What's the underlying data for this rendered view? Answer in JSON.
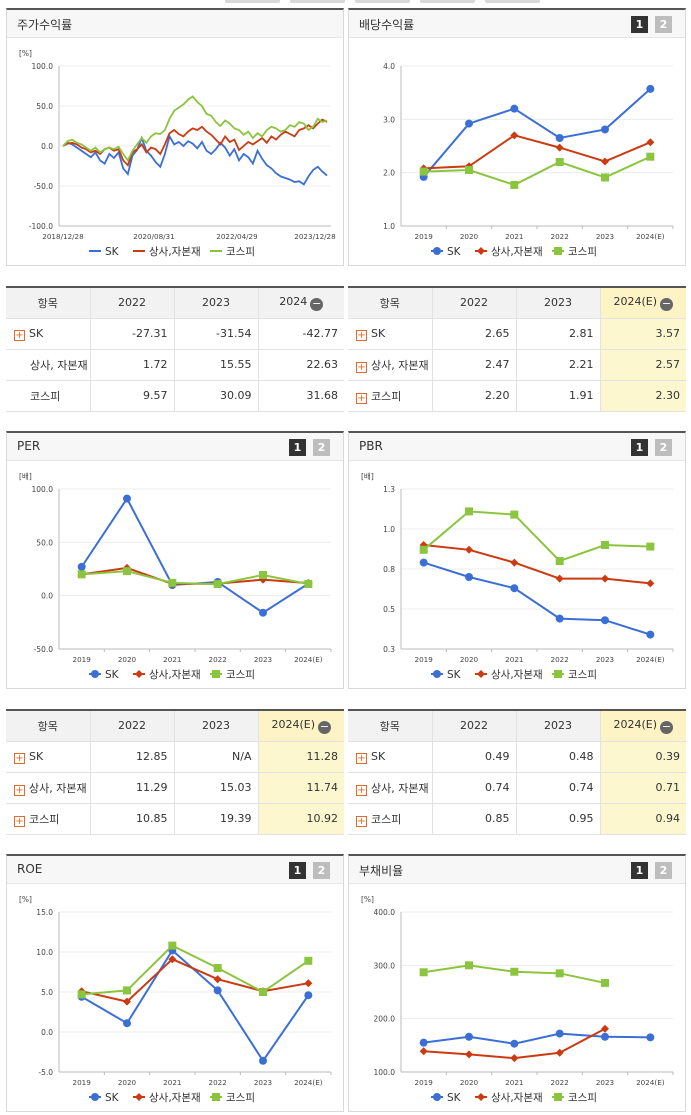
{
  "colors": {
    "sk": "#3b6fd6",
    "sector": "#cc3a12",
    "kospi": "#8bc53f"
  },
  "legend": {
    "sk": "SK",
    "sector": "상사,자본재",
    "kospi": "코스피"
  },
  "page_buttons": {
    "one": "1",
    "two": "2"
  },
  "panels": {
    "stock": {
      "title": "주가수익률"
    },
    "dividend": {
      "title": "배당수익률"
    },
    "per": {
      "title": "PER"
    },
    "pbr": {
      "title": "PBR"
    },
    "roe": {
      "title": "ROE"
    },
    "debt": {
      "title": "부채비율"
    }
  },
  "chart_data": [
    {
      "id": "stock",
      "type": "line",
      "unit": "[%]",
      "ylim": [
        -100,
        100
      ],
      "yticks": [
        "100.0",
        "50.0",
        "0.0",
        "-50.0",
        "-100.0"
      ],
      "xticks": [
        "2018/12/28",
        "2020/08/31",
        "2022/04/29",
        "2023/12/28"
      ],
      "series": [
        {
          "key": "sk",
          "values": [
            0,
            4,
            2,
            -2,
            -6,
            -10,
            -14,
            -8,
            -18,
            -22,
            -10,
            -15,
            -8,
            -28,
            -35,
            -12,
            -5,
            10,
            -6,
            -12,
            -20,
            -26,
            -10,
            12,
            2,
            5,
            0,
            6,
            3,
            -3,
            5,
            -6,
            -10,
            -4,
            4,
            -2,
            -12,
            -4,
            -18,
            -10,
            -14,
            -22,
            -6,
            -16,
            -24,
            -28,
            -34,
            -38,
            -40,
            -42,
            -45,
            -44,
            -48,
            -38,
            -30,
            -26,
            -32,
            -37
          ]
        },
        {
          "key": "sector",
          "values": [
            0,
            3,
            4,
            2,
            -2,
            -4,
            -8,
            -6,
            -10,
            -4,
            -2,
            -6,
            -4,
            -18,
            -24,
            -8,
            -4,
            2,
            -8,
            -2,
            -4,
            -10,
            2,
            16,
            20,
            15,
            12,
            18,
            22,
            20,
            24,
            18,
            14,
            8,
            2,
            12,
            5,
            8,
            -5,
            0,
            5,
            2,
            6,
            10,
            4,
            12,
            8,
            14,
            18,
            15,
            12,
            20,
            22,
            26,
            22,
            28,
            33,
            30
          ]
        },
        {
          "key": "kospi",
          "values": [
            0,
            6,
            8,
            4,
            2,
            -2,
            -6,
            -2,
            -8,
            -4,
            -2,
            -4,
            -1,
            -10,
            -18,
            -6,
            2,
            10,
            4,
            12,
            16,
            15,
            20,
            34,
            44,
            48,
            52,
            58,
            62,
            55,
            50,
            40,
            38,
            30,
            25,
            32,
            28,
            22,
            20,
            14,
            18,
            10,
            16,
            12,
            20,
            24,
            22,
            18,
            20,
            26,
            24,
            30,
            28,
            20,
            24,
            34,
            30,
            32
          ]
        }
      ]
    },
    {
      "id": "dividend",
      "type": "line",
      "unit": "",
      "ylim": [
        1.0,
        4.0
      ],
      "yticks": [
        "4.0",
        "3.0",
        "2.0",
        "1.0"
      ],
      "categories": [
        "2019",
        "2020",
        "2021",
        "2022",
        "2023",
        "2024(E)"
      ],
      "series": [
        {
          "key": "sk",
          "values": [
            1.92,
            2.92,
            3.2,
            2.65,
            2.81,
            3.57
          ]
        },
        {
          "key": "sector",
          "values": [
            2.08,
            2.12,
            2.7,
            2.47,
            2.21,
            2.57
          ]
        },
        {
          "key": "kospi",
          "values": [
            2.02,
            2.05,
            1.77,
            2.2,
            1.91,
            2.3
          ]
        }
      ]
    },
    {
      "id": "per",
      "type": "line",
      "unit": "[배]",
      "ylim": [
        -50,
        100
      ],
      "yticks": [
        "100.0",
        "50.0",
        "0.0",
        "-50.0"
      ],
      "categories": [
        "2019",
        "2020",
        "2021",
        "2022",
        "2023",
        "2024(E)"
      ],
      "series": [
        {
          "key": "sk",
          "values": [
            27,
            91,
            10,
            12.85,
            -16,
            11.28
          ]
        },
        {
          "key": "sector",
          "values": [
            20,
            26,
            11,
            11.29,
            15.03,
            11.74
          ]
        },
        {
          "key": "kospi",
          "values": [
            20,
            23,
            12,
            10.85,
            19.39,
            10.92
          ]
        }
      ]
    },
    {
      "id": "pbr",
      "type": "line",
      "unit": "[배]",
      "ylim": [
        0.3,
        1.3
      ],
      "yticks": [
        "1.3",
        "1.0",
        "0.8",
        "0.5",
        "0.3"
      ],
      "categories": [
        "2019",
        "2020",
        "2021",
        "2022",
        "2023",
        "2024(E)"
      ],
      "series": [
        {
          "key": "sk",
          "values": [
            0.84,
            0.75,
            0.68,
            0.49,
            0.48,
            0.39
          ]
        },
        {
          "key": "sector",
          "values": [
            0.95,
            0.92,
            0.84,
            0.74,
            0.74,
            0.71
          ]
        },
        {
          "key": "kospi",
          "values": [
            0.92,
            1.16,
            1.14,
            0.85,
            0.95,
            0.94
          ]
        }
      ]
    },
    {
      "id": "roe",
      "type": "line",
      "unit": "[%]",
      "ylim": [
        -5,
        15
      ],
      "yticks": [
        "15.0",
        "10.0",
        "5.0",
        "0.0",
        "-5.0"
      ],
      "categories": [
        "2019",
        "2020",
        "2021",
        "2022",
        "2023",
        "2024(E)"
      ],
      "series": [
        {
          "key": "sk",
          "values": [
            4.4,
            1.1,
            10.2,
            5.2,
            -3.6,
            4.6
          ]
        },
        {
          "key": "sector",
          "values": [
            5.1,
            3.8,
            9.1,
            6.6,
            5.1,
            6.1
          ]
        },
        {
          "key": "kospi",
          "values": [
            4.7,
            5.2,
            10.8,
            8.0,
            5.0,
            8.9
          ]
        }
      ]
    },
    {
      "id": "debt",
      "type": "line",
      "unit": "[%]",
      "ylim": [
        100,
        400
      ],
      "yticks": [
        "400.0",
        "300.0",
        "200.0",
        "100.0"
      ],
      "categories": [
        "2019",
        "2020",
        "2021",
        "2022",
        "2023",
        "2024(E)"
      ],
      "series": [
        {
          "key": "sk",
          "values": [
            155,
            166,
            153,
            172,
            166,
            165
          ]
        },
        {
          "key": "sector",
          "values": [
            139,
            133,
            126,
            136,
            181,
            null
          ]
        },
        {
          "key": "kospi",
          "values": [
            287,
            300,
            288,
            285,
            267,
            null
          ]
        }
      ]
    }
  ],
  "tables": {
    "stock": {
      "headers": [
        "항목",
        "2022",
        "2023",
        "2024"
      ],
      "rows": [
        {
          "label": "SK",
          "plus": true,
          "values": [
            "-27.31",
            "-31.54",
            "-42.77"
          ]
        },
        {
          "label": "상사, 자본재",
          "plus": false,
          "values": [
            "1.72",
            "15.55",
            "22.63"
          ]
        },
        {
          "label": "코스피",
          "plus": false,
          "values": [
            "9.57",
            "30.09",
            "31.68"
          ]
        }
      ]
    },
    "dividend": {
      "headers": [
        "항목",
        "2022",
        "2023",
        "2024(E)"
      ],
      "rows": [
        {
          "label": "SK",
          "plus": true,
          "values": [
            "2.65",
            "2.81",
            "3.57"
          ]
        },
        {
          "label": "상사, 자본재",
          "plus": true,
          "values": [
            "2.47",
            "2.21",
            "2.57"
          ]
        },
        {
          "label": "코스피",
          "plus": true,
          "values": [
            "2.20",
            "1.91",
            "2.30"
          ]
        }
      ]
    },
    "per": {
      "headers": [
        "항목",
        "2022",
        "2023",
        "2024(E)"
      ],
      "rows": [
        {
          "label": "SK",
          "plus": true,
          "values": [
            "12.85",
            "N/A",
            "11.28"
          ]
        },
        {
          "label": "상사, 자본재",
          "plus": true,
          "values": [
            "11.29",
            "15.03",
            "11.74"
          ]
        },
        {
          "label": "코스피",
          "plus": true,
          "values": [
            "10.85",
            "19.39",
            "10.92"
          ]
        }
      ]
    },
    "pbr": {
      "headers": [
        "항목",
        "2022",
        "2023",
        "2024(E)"
      ],
      "rows": [
        {
          "label": "SK",
          "plus": true,
          "values": [
            "0.49",
            "0.48",
            "0.39"
          ]
        },
        {
          "label": "상사, 자본재",
          "plus": true,
          "values": [
            "0.74",
            "0.74",
            "0.71"
          ]
        },
        {
          "label": "코스피",
          "plus": true,
          "values": [
            "0.85",
            "0.95",
            "0.94"
          ]
        }
      ]
    }
  }
}
